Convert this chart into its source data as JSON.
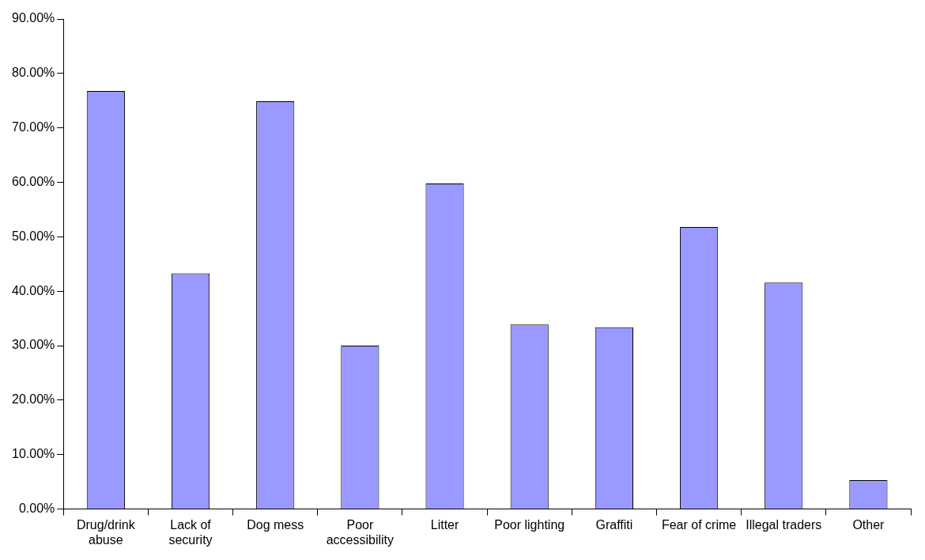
{
  "chart_data": {
    "type": "bar",
    "categories": [
      "Drug/drink abuse",
      "Lack of security",
      "Dog mess",
      "Poor accessibility",
      "Litter",
      "Poor lighting",
      "Graffiti",
      "Fear of crime",
      "Illegal traders",
      "Other"
    ],
    "values": [
      76.8,
      43.3,
      74.9,
      30.0,
      59.8,
      33.9,
      33.4,
      51.8,
      41.6,
      5.3
    ],
    "color": "#9999ff",
    "ylim": [
      0,
      90
    ],
    "yticks": [
      {
        "value": 0,
        "label": "0.00%"
      },
      {
        "value": 10,
        "label": "10.00%"
      },
      {
        "value": 20,
        "label": "20.00%"
      },
      {
        "value": 30,
        "label": "30.00%"
      },
      {
        "value": 40,
        "label": "40.00%"
      },
      {
        "value": 50,
        "label": "50.00%"
      },
      {
        "value": 60,
        "label": "60.00%"
      },
      {
        "value": 70,
        "label": "70.00%"
      },
      {
        "value": 80,
        "label": "80.00%"
      },
      {
        "value": 90,
        "label": "90.00%"
      }
    ],
    "grid": false,
    "legend": false
  }
}
